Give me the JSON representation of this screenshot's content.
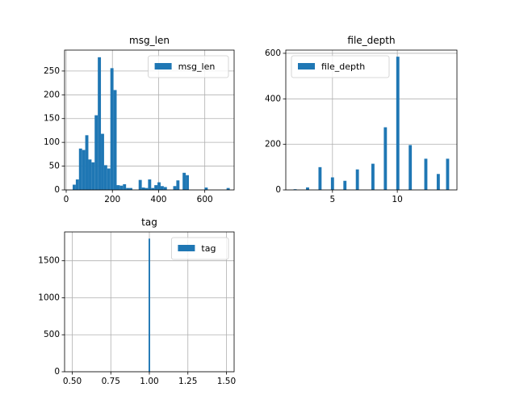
{
  "chart_data": [
    {
      "type": "bar",
      "title": "msg_len",
      "xlabel": "",
      "ylabel": "",
      "xlim": [
        -7,
        727
      ],
      "ylim": [
        0,
        294
      ],
      "xticks": [
        0,
        200,
        400,
        600
      ],
      "yticks": [
        0,
        50,
        100,
        150,
        200,
        250
      ],
      "xtick_labels": [
        "0",
        "200",
        "400",
        "600"
      ],
      "ytick_labels": [
        "0",
        "50",
        "100",
        "150",
        "200",
        "250"
      ],
      "grid": true,
      "legend": "upper right",
      "color": "#1f77b4",
      "series": [
        {
          "name": "msg_len",
          "bin_edges": [
            28.0,
            41.6,
            55.2,
            68.8,
            82.4,
            96.0,
            109.6,
            123.2,
            136.8,
            150.4,
            164.0,
            177.6,
            191.2,
            204.8,
            218.4,
            232.0,
            245.6,
            259.2,
            272.8,
            286.4,
            300.0,
            313.6,
            327.2,
            340.8,
            354.4,
            368.0,
            381.6,
            395.2,
            408.8,
            422.4,
            436.0,
            449.6,
            463.2,
            476.8,
            490.4,
            504.0,
            517.6,
            531.2,
            544.8,
            558.4,
            572.0,
            585.6,
            599.2,
            612.8,
            626.4,
            640.0,
            653.6,
            667.2,
            680.8,
            694.4,
            708.0
          ],
          "counts": [
            11,
            22,
            87,
            84,
            115,
            64,
            58,
            157,
            279,
            118,
            52,
            45,
            256,
            210,
            10,
            9,
            12,
            4,
            4,
            0,
            0,
            21,
            5,
            4,
            22,
            4,
            10,
            16,
            8,
            6,
            0,
            0,
            8,
            20,
            0,
            36,
            31,
            0,
            0,
            0,
            0,
            0,
            5,
            0,
            0,
            0,
            0,
            0,
            0,
            4
          ]
        }
      ]
    },
    {
      "type": "bar",
      "title": "file_depth",
      "xlabel": "",
      "ylabel": "",
      "xlim": [
        1.4,
        14.6
      ],
      "ylim": [
        0,
        614
      ],
      "xticks": [
        5,
        10
      ],
      "yticks": [
        0,
        200,
        400,
        600
      ],
      "xtick_labels": [
        "5",
        "10"
      ],
      "ytick_labels": [
        "0",
        "200",
        "400",
        "600"
      ],
      "grid": true,
      "legend": "upper left",
      "color": "#1f77b4",
      "series": [
        {
          "name": "file_depth",
          "bin_edges": [
            2.0,
            2.24,
            2.48,
            2.72,
            2.96,
            3.2,
            3.44,
            3.68,
            3.92,
            4.16,
            4.4,
            4.64,
            4.88,
            5.12,
            5.36,
            5.6,
            5.84,
            6.08,
            6.32,
            6.56,
            6.8,
            7.04,
            7.28,
            7.52,
            7.76,
            8.0,
            8.24,
            8.48,
            8.72,
            8.96,
            9.2,
            9.44,
            9.68,
            9.92,
            10.16,
            10.4,
            10.64,
            10.88,
            11.12,
            11.36,
            11.6,
            11.84,
            12.08,
            12.32,
            12.56,
            12.8,
            13.04,
            13.28,
            13.52,
            13.76,
            14.0
          ],
          "counts": [
            3,
            0,
            0,
            0,
            11,
            0,
            0,
            0,
            100,
            0,
            0,
            0,
            55,
            0,
            0,
            0,
            40,
            0,
            0,
            0,
            90,
            0,
            0,
            0,
            0,
            115,
            0,
            0,
            0,
            275,
            0,
            0,
            0,
            585,
            0,
            0,
            0,
            197,
            0,
            0,
            0,
            0,
            137,
            0,
            0,
            0,
            70,
            0,
            0,
            137
          ]
        }
      ]
    },
    {
      "type": "bar",
      "title": "tag",
      "xlabel": "",
      "ylabel": "",
      "xlim": [
        0.45,
        1.55
      ],
      "ylim": [
        0,
        1890
      ],
      "xticks": [
        0.5,
        0.75,
        1.0,
        1.25,
        1.5
      ],
      "yticks": [
        0,
        500,
        1000,
        1500
      ],
      "xtick_labels": [
        "0.50",
        "0.75",
        "1.00",
        "1.25",
        "1.50"
      ],
      "ytick_labels": [
        "0",
        "500",
        "1000",
        "1500"
      ],
      "grid": true,
      "legend": "upper right",
      "color": "#1f77b4",
      "series": [
        {
          "name": "tag",
          "bin_edges": [
            0.995,
            1.005
          ],
          "counts": [
            1800
          ]
        }
      ]
    }
  ]
}
